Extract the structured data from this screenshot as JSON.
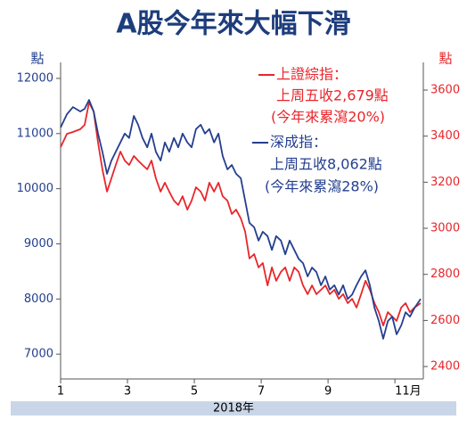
{
  "chart_data": {
    "type": "line",
    "title": "A股今年來大幅下滑",
    "xlabel": "2018年",
    "ylabel": "點",
    "y2label": "點",
    "x": [
      1,
      1.19,
      1.37,
      1.59,
      1.72,
      1.85,
      1.99,
      2.12,
      2.25,
      2.39,
      2.52,
      2.65,
      2.79,
      2.92,
      3.05,
      3.19,
      3.32,
      3.45,
      3.59,
      3.72,
      3.85,
      3.99,
      4.12,
      4.25,
      4.39,
      4.52,
      4.65,
      4.79,
      4.92,
      5.05,
      5.19,
      5.32,
      5.45,
      5.59,
      5.72,
      5.85,
      5.99,
      6.12,
      6.25,
      6.39,
      6.52,
      6.65,
      6.79,
      6.92,
      7.05,
      7.19,
      7.32,
      7.45,
      7.59,
      7.72,
      7.85,
      7.99,
      8.12,
      8.25,
      8.39,
      8.52,
      8.65,
      8.79,
      8.92,
      9.05,
      9.19,
      9.32,
      9.45,
      9.59,
      9.72,
      9.85,
      9.99,
      10.12,
      10.25,
      10.39,
      10.52,
      10.65,
      10.79,
      10.92,
      11.05,
      11.19,
      11.32,
      11.45,
      11.59,
      11.77
    ],
    "xlim": [
      1,
      11.85
    ],
    "xticks": [
      1,
      3,
      5,
      7,
      9,
      {
        "value": 11,
        "label": "11月"
      }
    ],
    "ylim": [
      6550,
      12290
    ],
    "yticks": [
      7000,
      8000,
      9000,
      10000,
      11000,
      12000
    ],
    "y2lim": [
      2346,
      3720
    ],
    "y2ticks": [
      2400,
      2600,
      2800,
      3000,
      3200,
      3400,
      3600
    ],
    "series": [
      {
        "name": "上證綜指：",
        "color": "#e8262b",
        "axis": "y2",
        "values": [
          3352,
          3410,
          3418,
          3430,
          3449,
          3546,
          3507,
          3372,
          3256,
          3159,
          3217,
          3275,
          3333,
          3294,
          3275,
          3314,
          3294,
          3275,
          3256,
          3294,
          3217,
          3159,
          3198,
          3159,
          3120,
          3101,
          3139,
          3081,
          3120,
          3178,
          3159,
          3120,
          3198,
          3159,
          3198,
          3139,
          3120,
          3062,
          3081,
          3043,
          2985,
          2869,
          2888,
          2830,
          2849,
          2752,
          2830,
          2772,
          2811,
          2830,
          2772,
          2830,
          2811,
          2752,
          2714,
          2752,
          2714,
          2733,
          2752,
          2714,
          2733,
          2694,
          2714,
          2675,
          2694,
          2656,
          2714,
          2772,
          2733,
          2675,
          2636,
          2578,
          2636,
          2617,
          2598,
          2656,
          2675,
          2636,
          2656,
          2675
        ]
      },
      {
        "name": "深成指：",
        "color": "#243f8f",
        "values": [
          11110,
          11350,
          11480,
          11400,
          11450,
          11610,
          11400,
          11000,
          10670,
          10270,
          10510,
          10670,
          10840,
          11000,
          10920,
          11320,
          11160,
          10920,
          10750,
          11000,
          10670,
          10510,
          10840,
          10670,
          10920,
          10750,
          11000,
          10840,
          10750,
          11080,
          11160,
          11000,
          11080,
          10840,
          11000,
          10590,
          10350,
          10430,
          10270,
          10190,
          9780,
          9380,
          9300,
          9060,
          9220,
          9140,
          8890,
          9140,
          9060,
          8810,
          9060,
          8890,
          8730,
          8650,
          8410,
          8570,
          8490,
          8250,
          8410,
          8170,
          8250,
          8080,
          8250,
          8000,
          8080,
          8250,
          8410,
          8520,
          8250,
          7840,
          7600,
          7280,
          7600,
          7680,
          7360,
          7520,
          7760,
          7680,
          7840,
          8000
        ]
      }
    ],
    "annotations": [
      "上周五收2,679點",
      "(今年來累瀉20%)",
      "上周五收8,062點",
      "(今年來累瀉28%)"
    ],
    "grid": false
  }
}
